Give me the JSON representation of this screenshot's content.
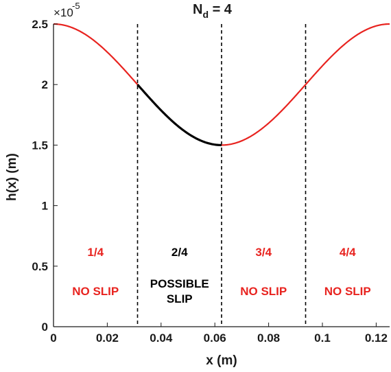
{
  "chart_data": {
    "type": "line",
    "title_main": "N",
    "title_sub": "d",
    "title_rest": " = 4",
    "xlabel": "x (m)",
    "ylabel": "h(x) (m)",
    "xlim": [
      0,
      0.125
    ],
    "ylim": [
      0,
      2.5e-05
    ],
    "y_multiplier_base": "×10",
    "y_multiplier_exp": "-5",
    "x_ticks": [
      0,
      0.02,
      0.04,
      0.06,
      0.08,
      0.1,
      0.12
    ],
    "x_tick_labels": [
      "0",
      "0.02",
      "0.04",
      "0.06",
      "0.08",
      "0.1",
      "0.12"
    ],
    "y_ticks": [
      0,
      0.5,
      1,
      1.5,
      2,
      2.5
    ],
    "y_tick_labels": [
      "0",
      "0.5",
      "1",
      "1.5",
      "2",
      "2.5"
    ],
    "grid": false,
    "curve": {
      "formula": "h(x) = 2e-5 + 5e-6 * cos(2*pi*x/0.125)",
      "period": 0.125,
      "mean": 2e-05,
      "amplitude": 5e-06
    },
    "dividers_x": [
      0.03125,
      0.0625,
      0.09375
    ],
    "regions": [
      {
        "fraction": "1/4",
        "label_lines": [
          "NO SLIP"
        ],
        "color": "#e8231f",
        "x_range": [
          0,
          0.03125
        ]
      },
      {
        "fraction": "2/4",
        "label_lines": [
          "POSSIBLE",
          "SLIP"
        ],
        "color": "#000000",
        "x_range": [
          0.03125,
          0.0625
        ]
      },
      {
        "fraction": "3/4",
        "label_lines": [
          "NO SLIP"
        ],
        "color": "#e8231f",
        "x_range": [
          0.0625,
          0.09375
        ]
      },
      {
        "fraction": "4/4",
        "label_lines": [
          "NO SLIP"
        ],
        "color": "#e8231f",
        "x_range": [
          0.09375,
          0.125
        ]
      }
    ],
    "colors": {
      "no_slip": "#e8231f",
      "possible_slip": "#000000",
      "axis": "#1a1a1a"
    }
  }
}
